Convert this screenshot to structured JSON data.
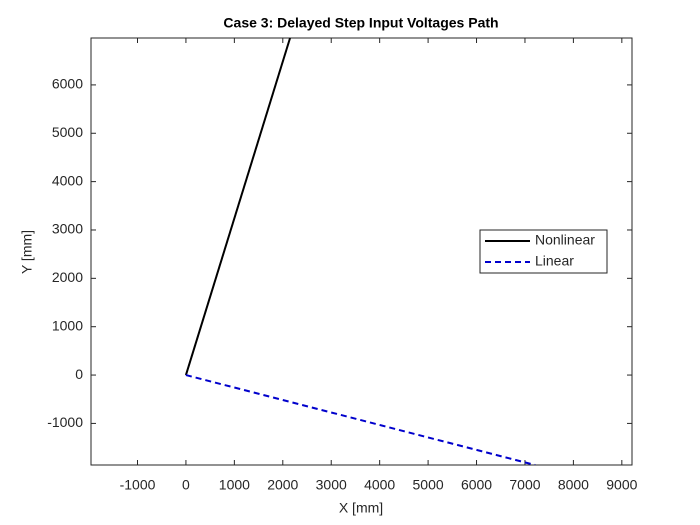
{
  "chart_data": {
    "type": "line",
    "title": "Case 3: Delayed Step Input Voltages Path",
    "xlabel": "X [mm]",
    "ylabel": "Y [mm]",
    "series": [
      {
        "name": "Nonlinear",
        "color": "#000000",
        "dash": false,
        "x": [
          0,
          2150
        ],
        "values": [
          0,
          6970
        ]
      },
      {
        "name": "Linear",
        "color": "#0000cc",
        "dash": true,
        "x": [
          0,
          7210
        ],
        "values": [
          0,
          -1860
        ]
      }
    ],
    "xlim": [
      -1960,
      9210
    ],
    "ylim": [
      -1860,
      6970
    ],
    "xticks": [
      -1000,
      0,
      1000,
      2000,
      3000,
      4000,
      5000,
      6000,
      7000,
      8000,
      9000
    ],
    "yticks": [
      -1000,
      0,
      1000,
      2000,
      3000,
      4000,
      5000,
      6000
    ],
    "legend": "east",
    "grid": false
  }
}
